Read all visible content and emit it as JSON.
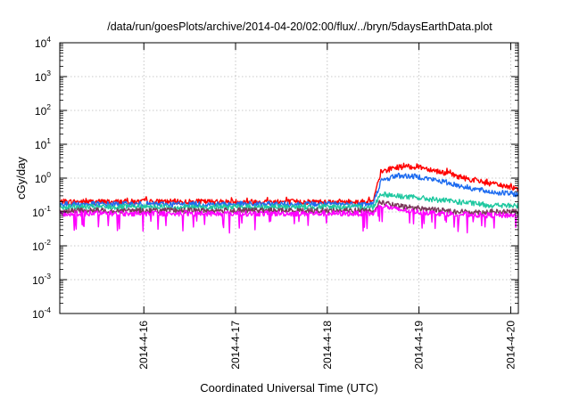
{
  "chart_data": {
    "type": "line",
    "title": "/data/run/goesPlots/archive/2014-04-20/02:00/flux/../bryn/5daysEarthData.plot",
    "xlabel": "Coordinated Universal Time (UTC)",
    "ylabel": "cGy/day",
    "yscale": "log",
    "ylim": [
      0.0001,
      10000
    ],
    "y_ticks": [
      {
        "base": "10",
        "exp": "-4",
        "value": 0.0001
      },
      {
        "base": "10",
        "exp": "-3",
        "value": 0.001
      },
      {
        "base": "10",
        "exp": "-2",
        "value": 0.01
      },
      {
        "base": "10",
        "exp": "-1",
        "value": 0.1
      },
      {
        "base": "10",
        "exp": "0",
        "value": 1
      },
      {
        "base": "10",
        "exp": "1",
        "value": 10
      },
      {
        "base": "10",
        "exp": "2",
        "value": 100
      },
      {
        "base": "10",
        "exp": "3",
        "value": 1000
      },
      {
        "base": "10",
        "exp": "4",
        "value": 10000
      }
    ],
    "xlim": [
      "2014-04-15T02:00",
      "2014-04-20T02:00"
    ],
    "x_ticks": [
      "2014-4-16",
      "2014-4-17",
      "2014-4-18",
      "2014-4-19",
      "2014-4-20"
    ],
    "grid": true,
    "legend": "none",
    "event_onset": "2014-04-18T13:00",
    "series": [
      {
        "color": "#ff0000",
        "x": [
          "2014-04-15T02:00",
          "2014-04-16T00:00",
          "2014-04-17T00:00",
          "2014-04-18T00:00",
          "2014-04-18T12:00",
          "2014-04-18T14:00",
          "2014-04-18T18:00",
          "2014-04-19T00:00",
          "2014-04-19T06:00",
          "2014-04-19T12:00",
          "2014-04-19T18:00",
          "2014-04-20T02:00"
        ],
        "y": [
          0.2,
          0.2,
          0.2,
          0.2,
          0.2,
          1.5,
          2.1,
          2.2,
          1.5,
          1.0,
          0.7,
          0.5
        ]
      },
      {
        "color": "#1e6cf0",
        "x": [
          "2014-04-15T02:00",
          "2014-04-16T00:00",
          "2014-04-17T00:00",
          "2014-04-18T00:00",
          "2014-04-18T12:00",
          "2014-04-18T14:00",
          "2014-04-18T18:00",
          "2014-04-19T00:00",
          "2014-04-19T06:00",
          "2014-04-19T12:00",
          "2014-04-19T18:00",
          "2014-04-20T02:00"
        ],
        "y": [
          0.17,
          0.17,
          0.17,
          0.17,
          0.17,
          0.8,
          1.2,
          1.1,
          0.8,
          0.55,
          0.4,
          0.33
        ]
      },
      {
        "color": "#1fc8a0",
        "x": [
          "2014-04-15T02:00",
          "2014-04-16T00:00",
          "2014-04-17T00:00",
          "2014-04-18T00:00",
          "2014-04-18T12:00",
          "2014-04-18T14:00",
          "2014-04-18T18:00",
          "2014-04-19T00:00",
          "2014-04-19T06:00",
          "2014-04-19T12:00",
          "2014-04-19T18:00",
          "2014-04-20T02:00"
        ],
        "y": [
          0.14,
          0.14,
          0.14,
          0.14,
          0.14,
          0.35,
          0.3,
          0.26,
          0.22,
          0.19,
          0.16,
          0.15
        ]
      },
      {
        "color": "#7a3a5a",
        "x": [
          "2014-04-15T02:00",
          "2014-04-16T00:00",
          "2014-04-17T00:00",
          "2014-04-18T00:00",
          "2014-04-18T12:00",
          "2014-04-18T14:00",
          "2014-04-18T18:00",
          "2014-04-19T00:00",
          "2014-04-19T06:00",
          "2014-04-19T12:00",
          "2014-04-19T18:00",
          "2014-04-20T02:00"
        ],
        "y": [
          0.11,
          0.11,
          0.11,
          0.11,
          0.11,
          0.2,
          0.15,
          0.13,
          0.11,
          0.1,
          0.1,
          0.1
        ]
      },
      {
        "color": "#ff00ff",
        "x": [
          "2014-04-15T02:00",
          "2014-04-16T00:00",
          "2014-04-17T00:00",
          "2014-04-18T00:00",
          "2014-04-18T12:00",
          "2014-04-18T14:00",
          "2014-04-18T18:00",
          "2014-04-19T00:00",
          "2014-04-19T06:00",
          "2014-04-19T12:00",
          "2014-04-19T18:00",
          "2014-04-20T02:00"
        ],
        "y": [
          0.09,
          0.09,
          0.09,
          0.09,
          0.09,
          0.16,
          0.12,
          0.1,
          0.09,
          0.085,
          0.08,
          0.08
        ]
      }
    ]
  }
}
